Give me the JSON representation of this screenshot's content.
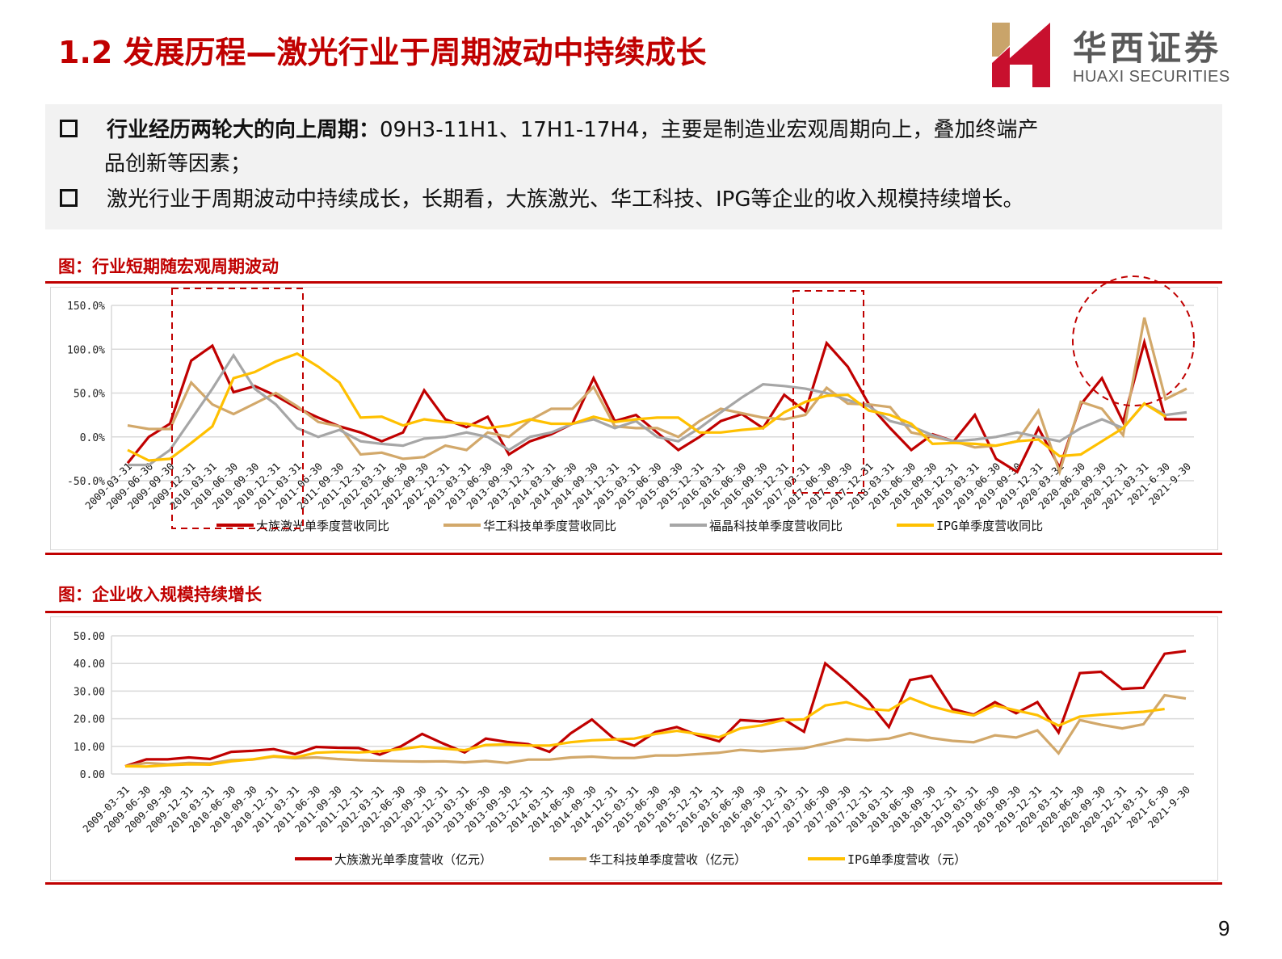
{
  "header": {
    "title": "1.2 发展历程—激光行业于周期波动中持续成长",
    "logo_cn": "华西证券",
    "logo_en": "HUAXI SECURITIES"
  },
  "bullets": [
    {
      "bold": "行业经历两轮大的向上周期：",
      "text": "09H3-11H1、17H1-17H4，主要是制造业宏观周期向上，叠加终端产",
      "cont": "品创新等因素；"
    },
    {
      "bold": "",
      "text": "激光行业于周期波动中持续成长，长期看，大族激光、华工科技、IPG等企业的收入规模持续增长。"
    }
  ],
  "figures": {
    "fig1_title": "图：行业短期随宏观周期波动",
    "fig2_title": "图：企业收入规模持续增长"
  },
  "page_number": "9",
  "colors": {
    "brand_red": "#C00000",
    "han_s": "#C00000",
    "hgtech": "#D2A86A",
    "fiberhome": "#A6A6A6",
    "ipg": "#FFC000"
  },
  "chart_data": [
    {
      "type": "line",
      "title": "图：行业短期随宏观周期波动",
      "xlabel": "",
      "ylabel": "",
      "ylim": [
        -50,
        150
      ],
      "yticks": [
        "-50.0%",
        "0.0%",
        "50.0%",
        "100.0%",
        "150.0%"
      ],
      "grid": true,
      "legend_position": "bottom",
      "annotations": [
        "dashed box 2009-12-31 to 2011-06-30",
        "dashed box 2017-03-31 to 2017-12-31",
        "dashed circle around 2020-12-31 to 2021-6-30"
      ],
      "categories": [
        "2009-03-31",
        "2009-06-30",
        "2009-09-30",
        "2009-12-31",
        "2010-03-31",
        "2010-06-30",
        "2010-09-30",
        "2010-12-31",
        "2011-03-31",
        "2011-06-30",
        "2011-09-30",
        "2011-12-31",
        "2012-03-31",
        "2012-06-30",
        "2012-09-30",
        "2012-12-31",
        "2013-03-31",
        "2013-06-30",
        "2013-09-30",
        "2013-12-31",
        "2014-03-31",
        "2014-06-30",
        "2014-09-30",
        "2014-12-31",
        "2015-03-31",
        "2015-06-30",
        "2015-09-30",
        "2015-12-31",
        "2016-03-31",
        "2016-06-30",
        "2016-09-30",
        "2016-12-31",
        "2017-03-31",
        "2017-06-30",
        "2017-09-30",
        "2017-12-31",
        "2018-03-31",
        "2018-06-30",
        "2018-09-30",
        "2018-12-31",
        "2019-03-31",
        "2019-06-30",
        "2019-09-30",
        "2019-12-31",
        "2020-03-31",
        "2020-06-30",
        "2020-09-30",
        "2020-12-31",
        "2021-03-31",
        "2021-6-30",
        "2021-9-30"
      ],
      "series": [
        {
          "name": "大族激光单季度营收同比",
          "color": "#C00000",
          "values": [
            -30,
            0,
            15,
            87,
            104,
            51,
            58,
            47,
            33,
            22,
            12,
            5,
            -5,
            5,
            53,
            20,
            11,
            23,
            -20,
            -5,
            3,
            15,
            67,
            18,
            25,
            5,
            -15,
            0,
            18,
            26,
            10,
            48,
            29,
            107,
            80,
            37,
            10,
            -15,
            3,
            -5,
            25,
            -25,
            -40,
            10,
            -35,
            37,
            67,
            17,
            108,
            20,
            20
          ]
        },
        {
          "name": "华工科技单季度营收同比",
          "color": "#D2A86A",
          "values": [
            13,
            9,
            9,
            62,
            37,
            26,
            38,
            50,
            35,
            17,
            12,
            -20,
            -18,
            -25,
            -23,
            -10,
            -15,
            5,
            0,
            19,
            32,
            32,
            57,
            12,
            10,
            10,
            0,
            18,
            32,
            27,
            22,
            20,
            25,
            56,
            38,
            37,
            34,
            5,
            0,
            -5,
            -12,
            -10,
            -5,
            30,
            -40,
            40,
            32,
            2,
            136,
            43,
            55
          ]
        },
        {
          "name": "福晶科技单季度营收同比",
          "color": "#A6A6A6",
          "values": [
            -32,
            -32,
            -15,
            20,
            55,
            93,
            55,
            37,
            10,
            0,
            8,
            -5,
            -8,
            -10,
            -2,
            0,
            5,
            0,
            -15,
            0,
            5,
            15,
            20,
            10,
            18,
            0,
            -5,
            10,
            28,
            45,
            60,
            58,
            55,
            50,
            42,
            35,
            18,
            12,
            2,
            -5,
            -3,
            0,
            5,
            0,
            -5,
            10,
            20,
            10,
            38,
            25,
            28
          ]
        },
        {
          "name": "IPG单季度营收同比",
          "color": "#FFC000",
          "values": [
            -15,
            -27,
            -25,
            -7,
            12,
            67,
            74,
            86,
            95,
            80,
            62,
            22,
            23,
            13,
            20,
            17,
            15,
            10,
            13,
            20,
            15,
            15,
            23,
            17,
            20,
            22,
            22,
            5,
            5,
            8,
            10,
            28,
            40,
            47,
            48,
            30,
            25,
            15,
            -8,
            -7,
            -8,
            -10,
            -5,
            -3,
            -22,
            -20,
            -5,
            10,
            38,
            23,
            null
          ]
        }
      ]
    },
    {
      "type": "line",
      "title": "图：企业收入规模持续增长",
      "xlabel": "",
      "ylabel": "",
      "ylim": [
        0,
        50
      ],
      "yticks": [
        "0.00",
        "10.00",
        "20.00",
        "30.00",
        "40.00",
        "50.00"
      ],
      "grid": true,
      "legend_position": "bottom",
      "categories": [
        "2009-03-31",
        "2009-06-30",
        "2009-09-30",
        "2009-12-31",
        "2010-03-31",
        "2010-06-30",
        "2010-09-30",
        "2010-12-31",
        "2011-03-31",
        "2011-06-30",
        "2011-09-30",
        "2011-12-31",
        "2012-03-31",
        "2012-06-30",
        "2012-09-30",
        "2012-12-31",
        "2013-03-31",
        "2013-06-30",
        "2013-09-30",
        "2013-12-31",
        "2014-03-31",
        "2014-06-30",
        "2014-09-30",
        "2014-12-31",
        "2015-03-31",
        "2015-06-30",
        "2015-09-30",
        "2015-12-31",
        "2016-03-31",
        "2016-06-30",
        "2016-09-30",
        "2016-12-31",
        "2017-03-31",
        "2017-06-30",
        "2017-09-30",
        "2017-12-31",
        "2018-03-31",
        "2018-06-30",
        "2018-09-30",
        "2018-12-31",
        "2019-03-31",
        "2019-06-30",
        "2019-09-30",
        "2019-12-31",
        "2020-03-31",
        "2020-06-30",
        "2020-09-30",
        "2020-12-31",
        "2021-03-31",
        "2021-6-30",
        "2021-9-30"
      ],
      "series": [
        {
          "name": "大族激光单季度营收（亿元）",
          "color": "#C00000",
          "values": [
            2.8,
            5.3,
            5.3,
            6.0,
            5.4,
            8.0,
            8.4,
            9.0,
            7.2,
            9.8,
            9.5,
            9.4,
            7.0,
            10.0,
            14.5,
            11.0,
            7.8,
            12.8,
            11.6,
            10.8,
            8.0,
            14.7,
            19.7,
            13.0,
            10.2,
            15.2,
            17.0,
            14.0,
            11.8,
            19.5,
            19.0,
            20.0,
            15.3,
            40.0,
            33.6,
            26.5,
            17.0,
            34.0,
            35.5,
            23.5,
            21.5,
            26.0,
            22.0,
            26.0,
            15.0,
            36.5,
            37.0,
            30.8,
            31.2,
            43.5,
            44.5
          ]
        },
        {
          "name": "华工科技单季度营收（亿元）",
          "color": "#D2A86A",
          "values": [
            2.8,
            4.0,
            3.5,
            4.0,
            3.8,
            5.0,
            5.2,
            6.3,
            5.7,
            6.0,
            5.4,
            5.0,
            4.8,
            4.6,
            4.5,
            4.6,
            4.2,
            4.7,
            4.0,
            5.2,
            5.2,
            6.0,
            6.3,
            5.8,
            5.8,
            6.7,
            6.7,
            7.2,
            7.7,
            8.7,
            8.2,
            8.8,
            9.3,
            11.0,
            12.6,
            12.2,
            12.8,
            14.8,
            13.0,
            12.0,
            11.5,
            14.0,
            13.2,
            15.8,
            7.5,
            19.5,
            17.8,
            16.5,
            18.0,
            28.5,
            27.3
          ]
        },
        {
          "name": "IPG单季度营收（元）",
          "color": "#FFC000",
          "values": [
            2.8,
            2.7,
            3.2,
            3.5,
            3.4,
            4.6,
            5.3,
            6.5,
            6.0,
            7.7,
            8.0,
            7.8,
            8.2,
            9.0,
            10.0,
            9.2,
            8.6,
            10.5,
            10.7,
            10.3,
            10.3,
            11.5,
            12.2,
            12.5,
            12.8,
            14.5,
            15.6,
            14.5,
            13.3,
            16.5,
            17.6,
            19.5,
            19.8,
            24.8,
            26.0,
            23.5,
            23.0,
            27.5,
            24.5,
            22.5,
            21.2,
            24.8,
            23.0,
            21.3,
            17.5,
            20.8,
            21.5,
            22.0,
            22.5,
            23.5,
            null
          ]
        }
      ]
    }
  ]
}
